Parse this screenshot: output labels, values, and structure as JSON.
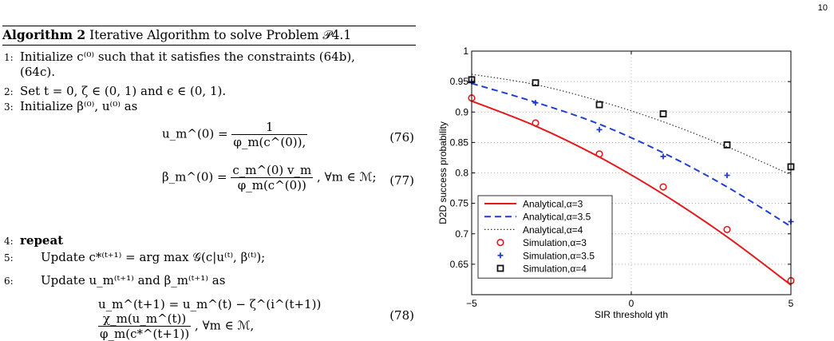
{
  "page_number": "10",
  "algorithm": {
    "label": "Algorithm 2",
    "title": "Iterative Algorithm to solve Problem 𝒫4.1",
    "steps": [
      {
        "num": "1:",
        "text": "Initialize c⁽⁰⁾ such that it satisfies the constraints (64b),"
      },
      {
        "num": "",
        "text": "(64c)."
      },
      {
        "num": "2:",
        "text": "Set t = 0, ζ ∈ (0, 1) and ϵ ∈ (0, 1)."
      },
      {
        "num": "3:",
        "text": "Initialize β⁽⁰⁾, u⁽⁰⁾ as"
      },
      {
        "num": "4:",
        "text": "repeat"
      },
      {
        "num": "5:",
        "text": "Update c*⁽ᵗ⁺¹⁾ = arg max 𝒢(c|u⁽ᵗ⁾, β⁽ᵗ⁾);"
      },
      {
        "num": "6:",
        "text": "Update u_m⁽ᵗ⁺¹⁾ and β_m⁽ᵗ⁺¹⁾ as"
      }
    ],
    "equations": [
      {
        "lhs": "u_m^(0) =",
        "num": "1",
        "den": "φ_m(c^(0)),",
        "tag": "(76)"
      },
      {
        "lhs": "β_m^(0) =",
        "num": "c_m^(0) v_m",
        "den": "φ_m(c^(0))",
        "rhs": ",   ∀m ∈ ℳ;",
        "tag": "(77)"
      },
      {
        "lhs": "u_m^(t+1) = u_m^(t) − ζ^(i^(t+1))",
        "num": "χ_m(u_m^(t))",
        "den": "φ_m(c*^(t+1))",
        "rhs": ", ∀m ∈ ℳ,",
        "tag": "(78)"
      }
    ]
  },
  "chart_data": {
    "type": "line",
    "xlabel": "SIR threshold γth",
    "ylabel": "D2D success probability",
    "xlim": [
      -5,
      5
    ],
    "ylim": [
      0.6,
      1.0
    ],
    "xticks": [
      "−5",
      "0",
      "5"
    ],
    "yticks": [
      "0.65",
      "0.7",
      "0.75",
      "0.8",
      "0.85",
      "0.9",
      "0.95",
      "1"
    ],
    "grid": true,
    "legend_placement": "bottom-left",
    "series": [
      {
        "name": "Analytical,α=3",
        "kind": "line",
        "style": "solid",
        "color": "#e41a1c",
        "x": [
          -5,
          -3,
          -1,
          1,
          3,
          5
        ],
        "y": [
          0.918,
          0.877,
          0.826,
          0.765,
          0.695,
          0.616
        ]
      },
      {
        "name": "Analytical,α=3.5",
        "kind": "line",
        "style": "dashed",
        "color": "#1f3fd1",
        "x": [
          -5,
          -3,
          -1,
          1,
          3,
          5
        ],
        "y": [
          0.947,
          0.916,
          0.88,
          0.833,
          0.777,
          0.712
        ]
      },
      {
        "name": "Analytical,α=4",
        "kind": "line",
        "style": "dotted",
        "color": "#333333",
        "x": [
          -5,
          -3,
          -1,
          1,
          3,
          5
        ],
        "y": [
          0.962,
          0.945,
          0.918,
          0.884,
          0.843,
          0.797
        ]
      },
      {
        "name": "Simulation,α=3",
        "kind": "marker",
        "marker": "circle",
        "color": "#e41a1c",
        "x": [
          -5,
          -3,
          -1,
          1,
          3,
          5
        ],
        "y": [
          0.923,
          0.882,
          0.831,
          0.777,
          0.707,
          0.623
        ]
      },
      {
        "name": "Simulation,α=3.5",
        "kind": "marker",
        "marker": "plus",
        "color": "#1f3fd1",
        "x": [
          -5,
          -3,
          -1,
          1,
          3,
          5
        ],
        "y": [
          0.95,
          0.915,
          0.871,
          0.827,
          0.796,
          0.72
        ]
      },
      {
        "name": "Simulation,α=4",
        "kind": "marker",
        "marker": "square",
        "color": "#111111",
        "x": [
          -5,
          -3,
          -1,
          1,
          3,
          5
        ],
        "y": [
          0.953,
          0.948,
          0.912,
          0.897,
          0.846,
          0.81
        ]
      }
    ]
  }
}
